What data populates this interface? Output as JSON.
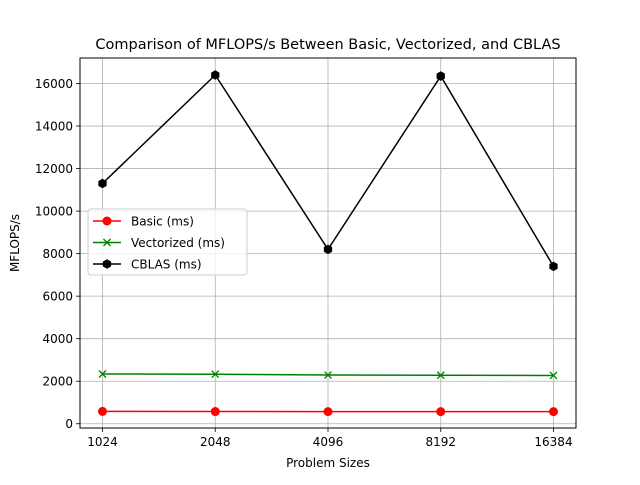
{
  "chart_data": {
    "type": "line",
    "title": "Comparison of MFLOPS/s Between Basic, Vectorized, and CBLAS",
    "xlabel": "Problem Sizes",
    "ylabel": "MFLOPS/s",
    "categories": [
      "1024",
      "2048",
      "4096",
      "8192",
      "16384"
    ],
    "ylim": [
      -200,
      17200
    ],
    "yticks": [
      0,
      2000,
      4000,
      6000,
      8000,
      10000,
      12000,
      14000,
      16000
    ],
    "grid": true,
    "legend_position": "center-left",
    "series": [
      {
        "name": "Basic (ms)",
        "color": "#ff0000",
        "marker": "circle",
        "values": [
          580,
          575,
          570,
          570,
          570
        ]
      },
      {
        "name": "Vectorized (ms)",
        "color": "#008000",
        "marker": "x",
        "values": [
          2340,
          2330,
          2290,
          2280,
          2270
        ]
      },
      {
        "name": "CBLAS (ms)",
        "color": "#000000",
        "marker": "hexagon",
        "values": [
          11300,
          16400,
          8200,
          16350,
          7400
        ]
      }
    ]
  }
}
